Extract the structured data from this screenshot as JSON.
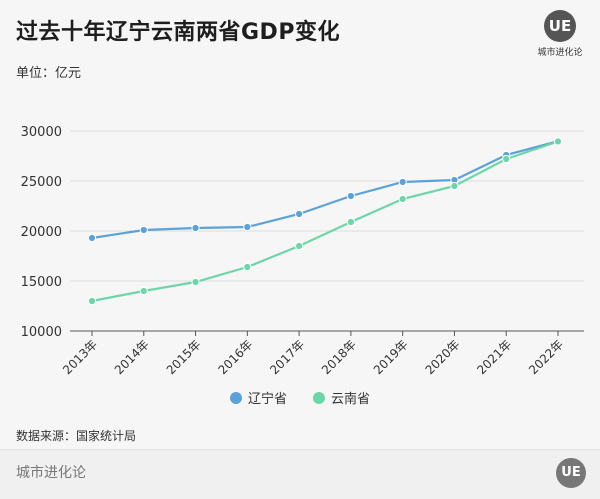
{
  "header": {
    "title": "过去十年辽宁云南两省GDP变化",
    "unit": "单位：亿元",
    "logo_mark": "UE",
    "logo_text": "城市进化论"
  },
  "source": "数据来源：国家统计局",
  "footer": {
    "brand": "城市进化论",
    "logo_mark": "UE"
  },
  "colors": {
    "liaoning": "#5aa2d8",
    "yunnan": "#6dd6a9"
  },
  "chart_data": {
    "type": "line",
    "x": [
      "2013年",
      "2014年",
      "2015年",
      "2016年",
      "2017年",
      "2018年",
      "2019年",
      "2020年",
      "2021年",
      "2022年"
    ],
    "series": [
      {
        "name": "辽宁省",
        "values": [
          19300,
          20100,
          20300,
          20400,
          21700,
          23500,
          24900,
          25100,
          27600,
          28980
        ]
      },
      {
        "name": "云南省",
        "values": [
          13000,
          14000,
          14900,
          16400,
          18500,
          20900,
          23200,
          24500,
          27200,
          28950
        ]
      }
    ],
    "y_ticks": [
      10000,
      15000,
      20000,
      25000,
      30000
    ],
    "ylim": [
      10000,
      30000
    ],
    "grid": true,
    "legend_position": "bottom-center"
  }
}
